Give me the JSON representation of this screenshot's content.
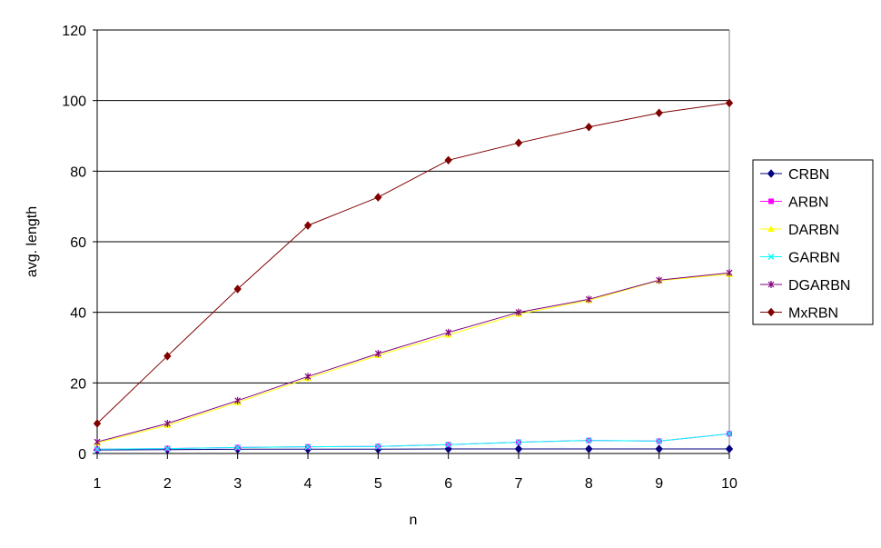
{
  "chart_data": {
    "type": "line",
    "title": "",
    "xlabel": "n",
    "ylabel": "avg. length",
    "x": [
      1,
      2,
      3,
      4,
      5,
      6,
      7,
      8,
      9,
      10
    ],
    "ylim": [
      0,
      120
    ],
    "yticks": [
      0,
      20,
      40,
      60,
      80,
      100,
      120
    ],
    "grid": "horizontal",
    "legend_position": "right",
    "series": [
      {
        "name": "CRBN",
        "color": "#000080",
        "marker": "diamond",
        "values": [
          1.0,
          1.1,
          1.2,
          1.2,
          1.2,
          1.3,
          1.3,
          1.3,
          1.3,
          1.3
        ]
      },
      {
        "name": "ARBN",
        "color": "#ff00ff",
        "marker": "square",
        "values": [
          1.2,
          1.4,
          1.7,
          1.9,
          2.0,
          2.5,
          3.2,
          3.7,
          3.5,
          5.6
        ]
      },
      {
        "name": "DARBN",
        "color": "#ffff00",
        "marker": "triangle",
        "values": [
          3.0,
          8.0,
          14.5,
          21.3,
          27.8,
          33.6,
          39.5,
          43.4,
          49.0,
          50.8
        ]
      },
      {
        "name": "GARBN",
        "color": "#00ffff",
        "marker": "x",
        "values": [
          1.2,
          1.4,
          1.7,
          1.9,
          2.0,
          2.5,
          3.2,
          3.7,
          3.5,
          5.6
        ]
      },
      {
        "name": "DGARBN",
        "color": "#800080",
        "marker": "star",
        "values": [
          3.3,
          8.5,
          15.0,
          21.8,
          28.3,
          34.3,
          40.0,
          43.7,
          49.1,
          51.2
        ]
      },
      {
        "name": "MxRBN",
        "color": "#800000",
        "marker": "diamond",
        "values": [
          8.5,
          27.6,
          46.6,
          64.6,
          72.6,
          83.1,
          88.0,
          92.5,
          96.5,
          99.3
        ]
      }
    ]
  }
}
